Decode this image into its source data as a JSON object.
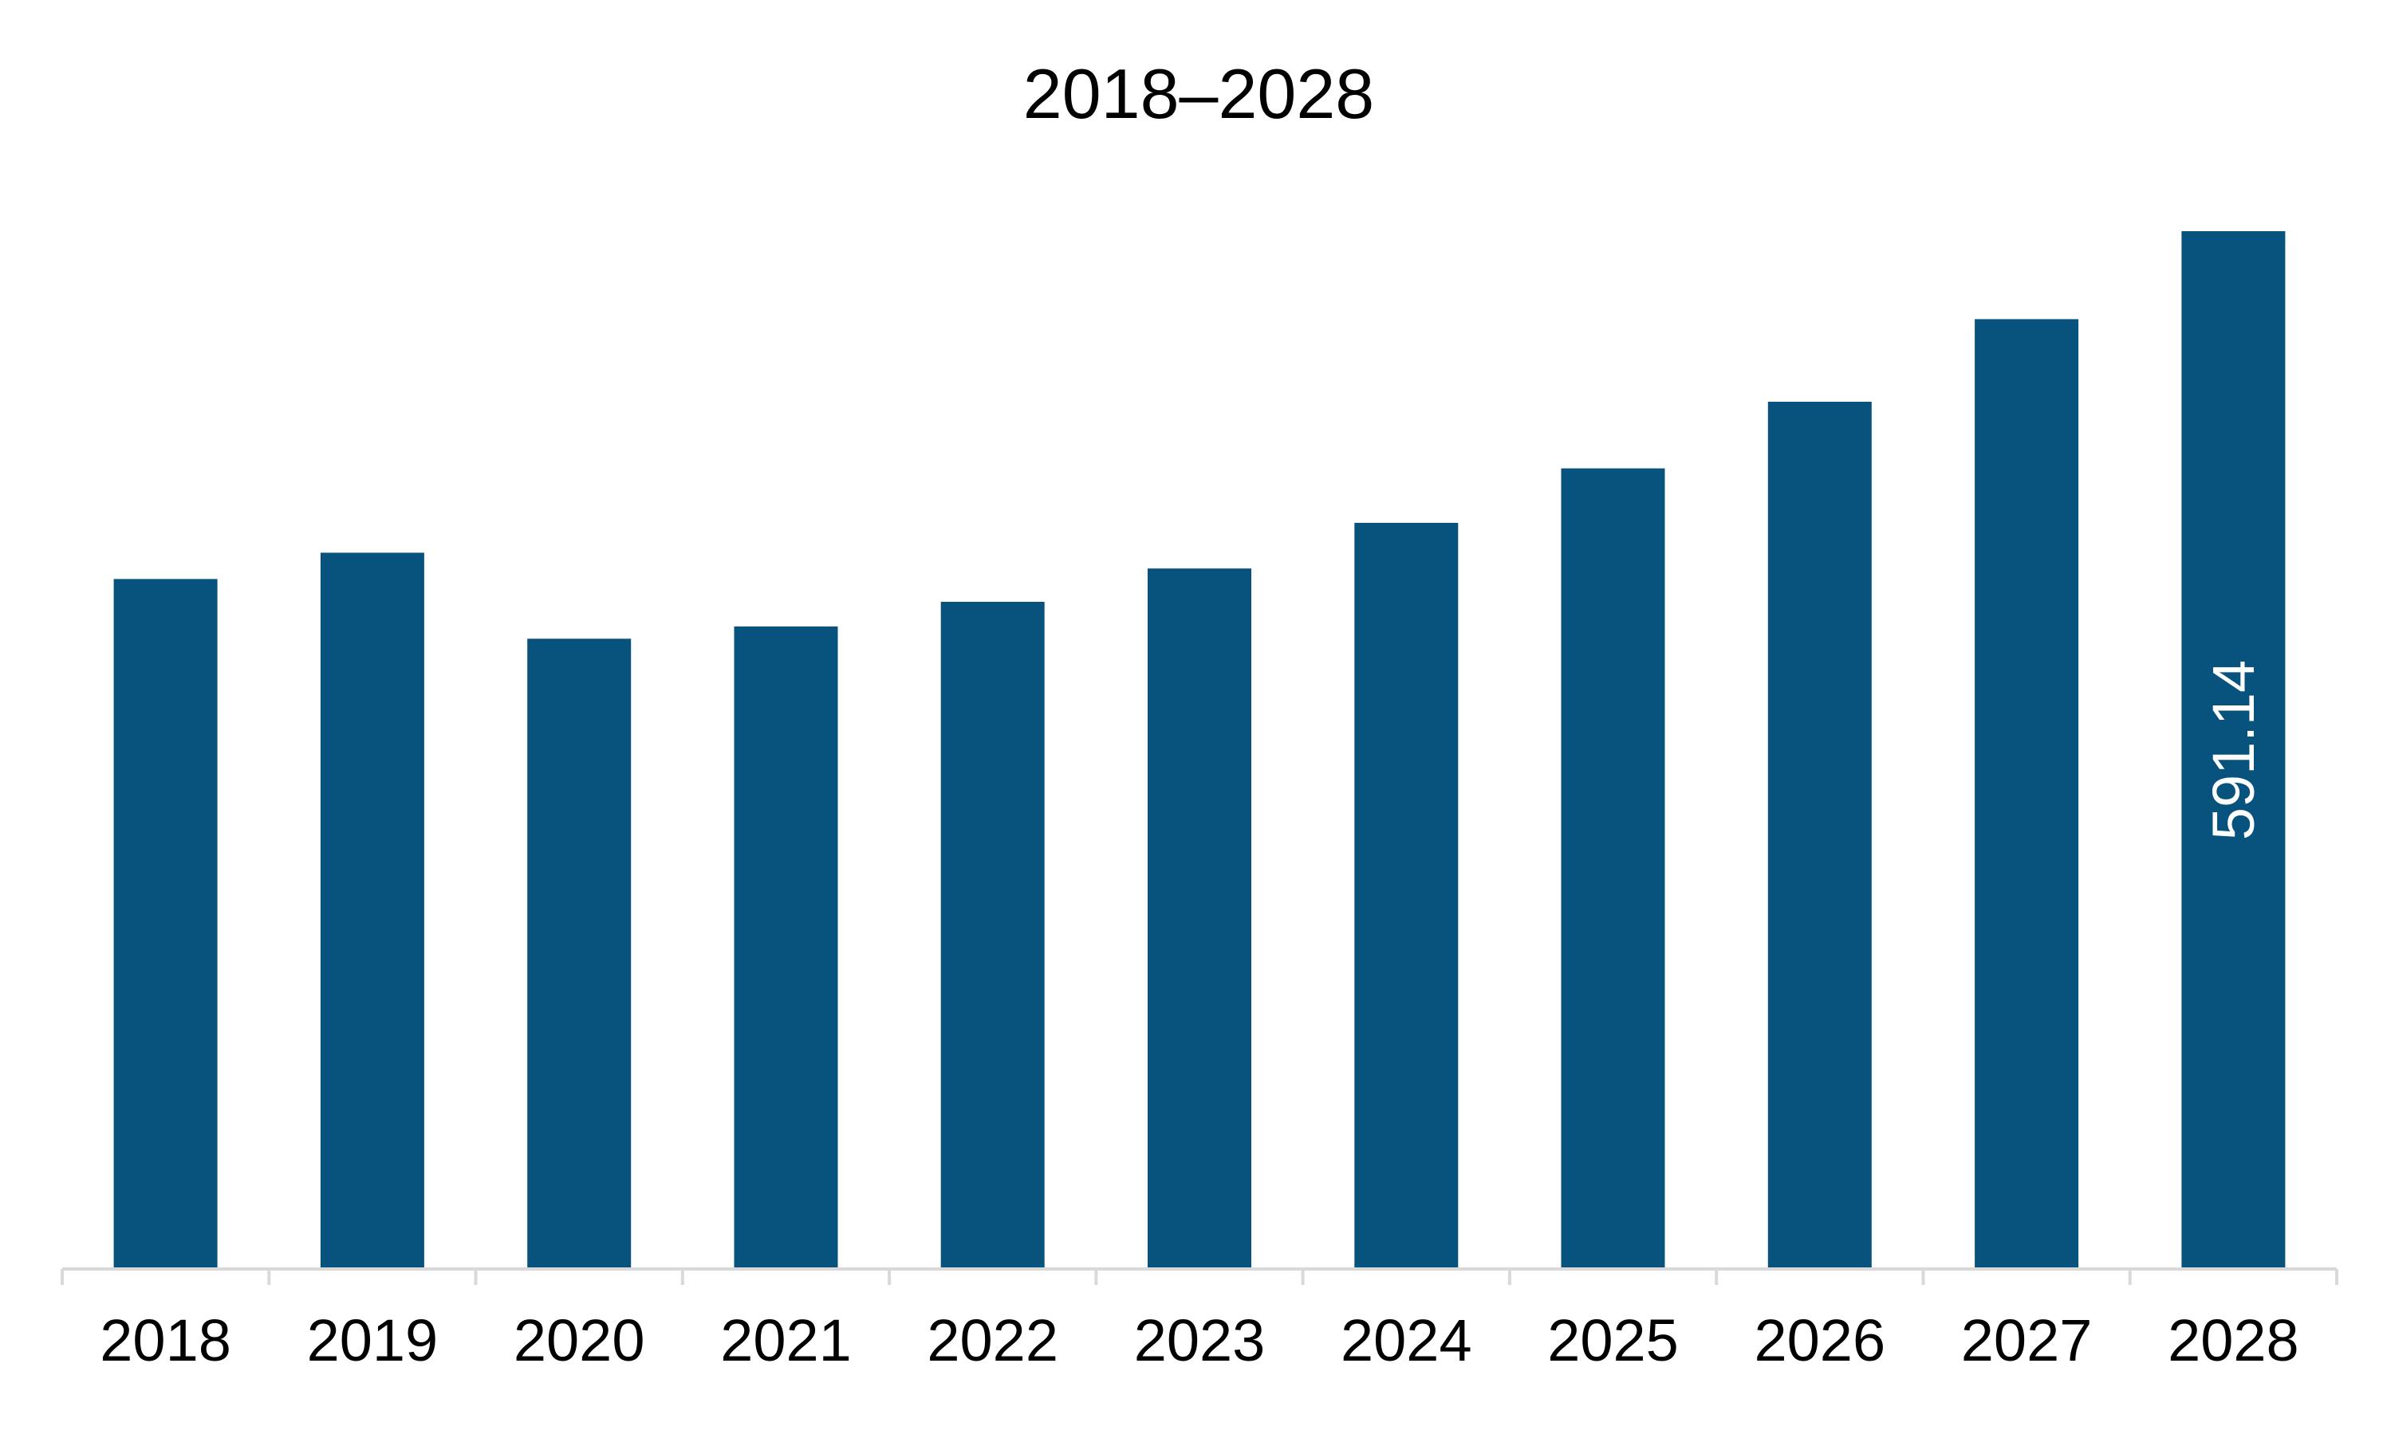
{
  "chart_data": {
    "type": "bar",
    "title": "2018–2028",
    "xlabel": "",
    "ylabel": "",
    "categories": [
      "2018",
      "2019",
      "2020",
      "2021",
      "2022",
      "2023",
      "2024",
      "2025",
      "2026",
      "2027",
      "2028"
    ],
    "values": [
      393,
      408,
      359,
      366,
      380,
      399,
      425,
      456,
      494,
      541,
      591.14
    ],
    "data_labels": [
      {
        "category": "2028",
        "text": "591.14"
      }
    ],
    "ylim": [
      0,
      591.14
    ],
    "grid": false,
    "legend": "none",
    "bar_color": "#08527e",
    "axis_color": "#d9d9d9"
  }
}
